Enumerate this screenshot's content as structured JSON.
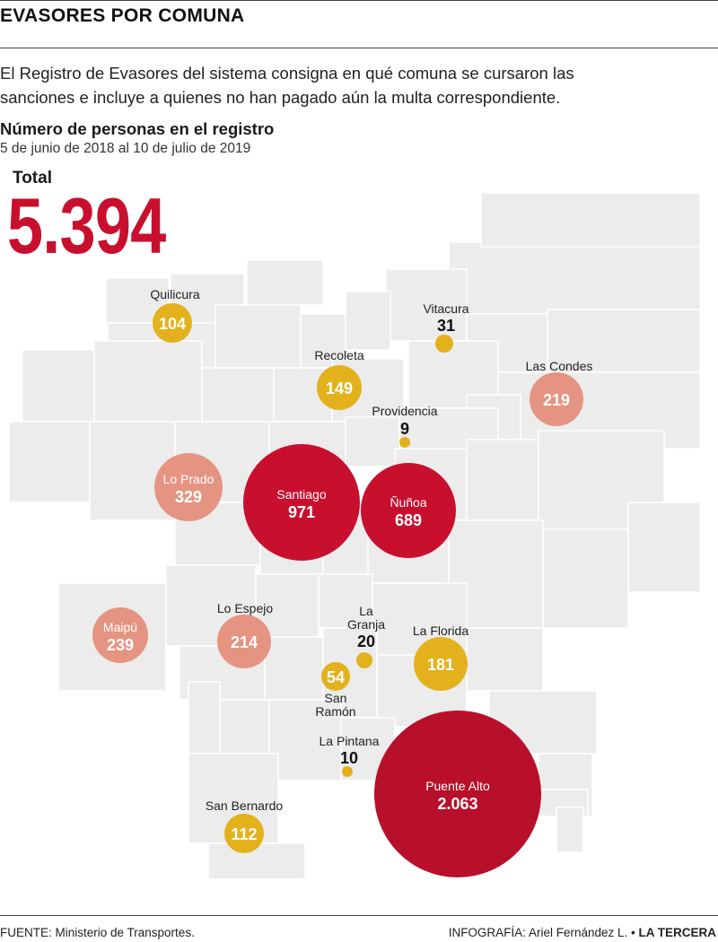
{
  "header": {
    "title": "EVASORES POR COMUNA"
  },
  "intro": {
    "lines": [
      "El Registro de Evasores del sistema consigna en qué comuna se cursaron las",
      "sanciones e incluye a quienes no han pagado aún la multa correspondiente."
    ]
  },
  "chart": {
    "heading": "Número de personas en el registro",
    "period": "5 de junio de  2018 al 10 de julio de 2019"
  },
  "total": {
    "label": "Total",
    "value": "5.394"
  },
  "colors": {
    "high": "#c8102e",
    "highDark": "#b80f2a",
    "mid": "#e59482",
    "low": "#e3b11c",
    "dot": "#e3b11c",
    "land": "#ececec",
    "border": "#ffffff"
  },
  "comunas": [
    {
      "name": "Quilicura",
      "value": 104,
      "label": "104",
      "tier": "low"
    },
    {
      "name": "Vitacura",
      "value": 31,
      "label": "31",
      "tier": "dot"
    },
    {
      "name": "Recoleta",
      "value": 149,
      "label": "149",
      "tier": "low"
    },
    {
      "name": "Las Condes",
      "value": 219,
      "label": "219",
      "tier": "mid"
    },
    {
      "name": "Providencia",
      "value": 9,
      "label": "9",
      "tier": "dot"
    },
    {
      "name": "Lo Prado",
      "value": 329,
      "label": "329",
      "tier": "mid"
    },
    {
      "name": "Santiago",
      "value": 971,
      "label": "971",
      "tier": "high"
    },
    {
      "name": "Ñuñoa",
      "value": 689,
      "label": "689",
      "tier": "high"
    },
    {
      "name": "Maipú",
      "value": 239,
      "label": "239",
      "tier": "mid"
    },
    {
      "name": "Lo Espejo",
      "value": 214,
      "label": "214",
      "tier": "mid"
    },
    {
      "name": "La Granja",
      "value": 20,
      "label": "20",
      "tier": "dot"
    },
    {
      "name": "La Florida",
      "value": 181,
      "label": "181",
      "tier": "low"
    },
    {
      "name": "San Ramón",
      "value": 54,
      "label": "54",
      "tier": "low"
    },
    {
      "name": "La Pintana",
      "value": 10,
      "label": "10",
      "tier": "dot"
    },
    {
      "name": "Puente Alto",
      "value": 2063,
      "label": "2.063",
      "tier": "highDark"
    },
    {
      "name": "San Bernardo",
      "value": 112,
      "label": "112",
      "tier": "low"
    }
  ],
  "footer": {
    "source": "FUENTE: Ministerio de Transportes.",
    "credit_prefix": "INFOGRAFÍA: Ariel Fernández L. •",
    "credit_brand": "LA TERCERA"
  }
}
